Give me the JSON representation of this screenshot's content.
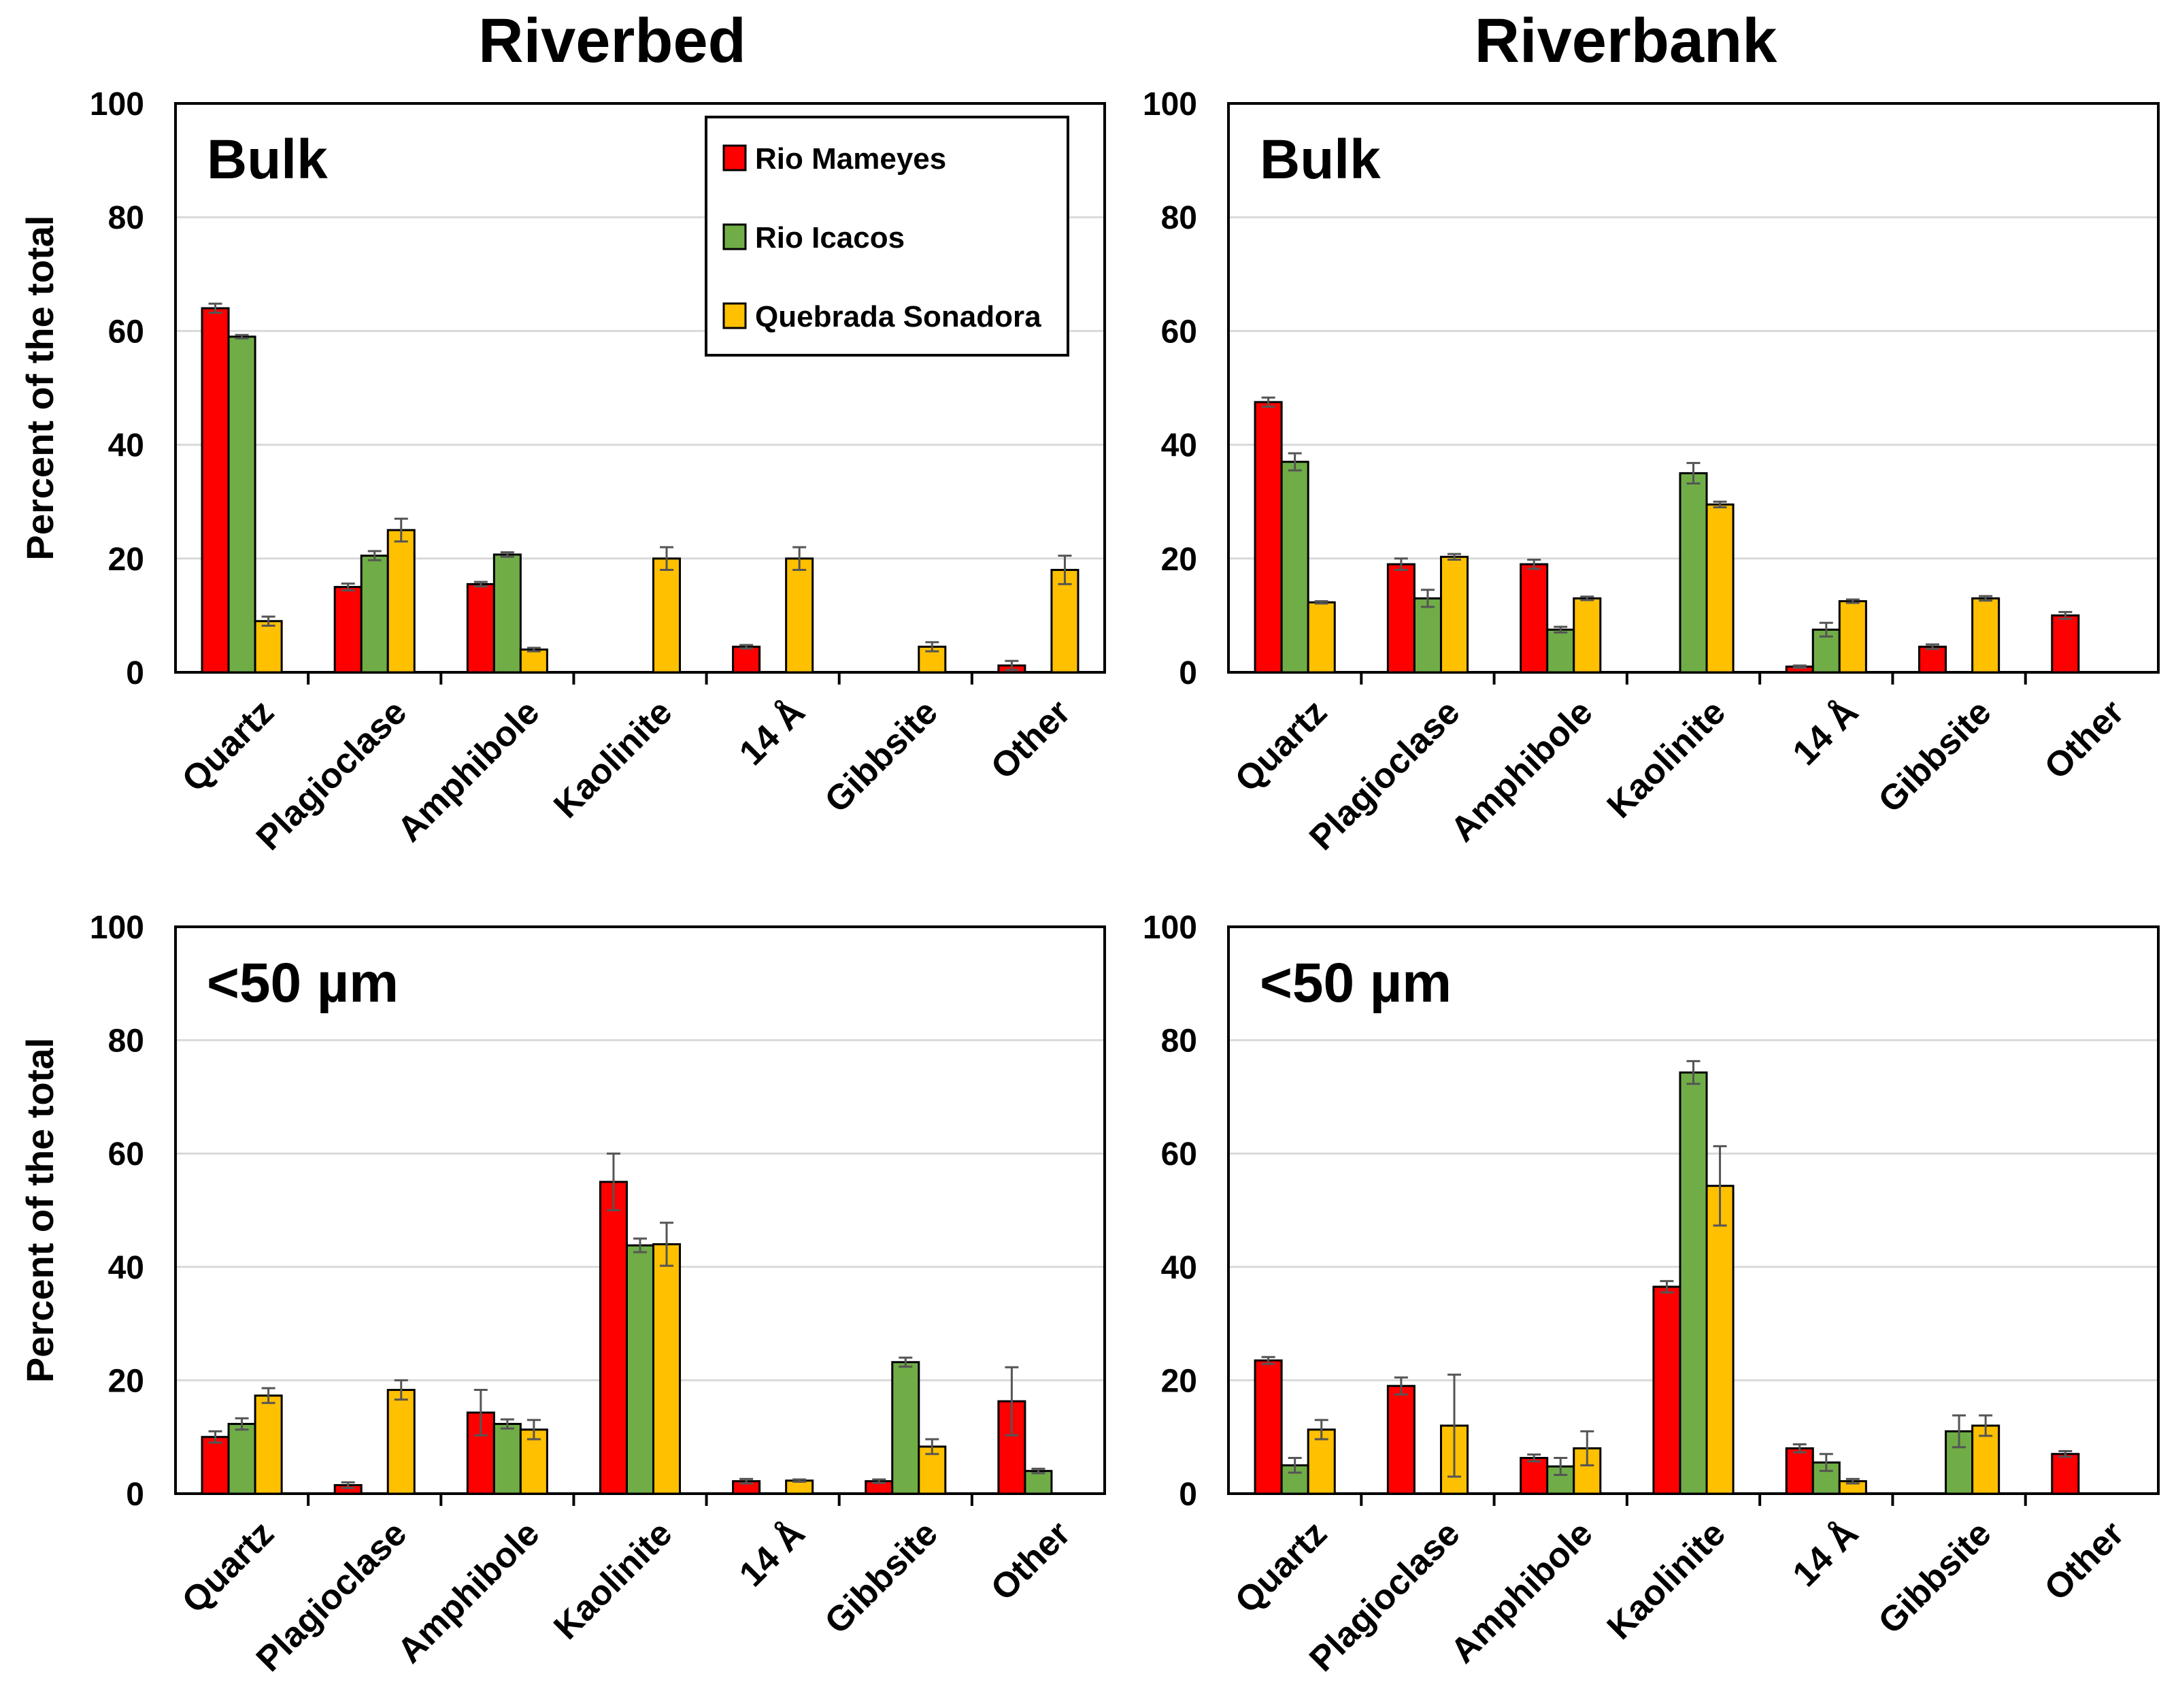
{
  "figure": {
    "column_titles": [
      "Riverbed",
      "Riverbank"
    ],
    "ylabel": "Percent of the total"
  },
  "legend": {
    "items": [
      {
        "name": "Rio Mameyes",
        "color": "#ff0000"
      },
      {
        "name": "Rio Icacos",
        "color": "#70ad47"
      },
      {
        "name": "Quebrada Sonadora",
        "color": "#ffc000"
      }
    ]
  },
  "chart_data": [
    {
      "type": "bar",
      "column": "Riverbed",
      "panel_label": "Bulk",
      "ylabel": "Percent of the total",
      "ylim": [
        0,
        100
      ],
      "yticks": [
        0,
        20,
        40,
        60,
        80,
        100
      ],
      "categories": [
        "Quartz",
        "Plagioclase",
        "Amphibole",
        "Kaolinite",
        "14 Å",
        "Gibbsite",
        "Other"
      ],
      "series": [
        {
          "name": "Rio Mameyes",
          "values": [
            64,
            15,
            15.5,
            null,
            4.5,
            null,
            1.2
          ],
          "errors": [
            0.8,
            0.6,
            0.4,
            null,
            0.3,
            null,
            0.8
          ]
        },
        {
          "name": "Rio Icacos",
          "values": [
            59,
            20.5,
            20.7,
            null,
            null,
            null,
            null
          ],
          "errors": [
            0.3,
            0.8,
            0.4,
            null,
            null,
            null,
            null
          ]
        },
        {
          "name": "Quebrada Sonadora",
          "values": [
            9,
            25,
            4,
            20,
            20,
            4.5,
            18
          ],
          "errors": [
            0.8,
            2,
            0.3,
            2,
            2,
            0.8,
            2.5
          ]
        }
      ]
    },
    {
      "type": "bar",
      "column": "Riverbank",
      "panel_label": "Bulk",
      "ylabel": "",
      "ylim": [
        0,
        100
      ],
      "yticks": [
        0,
        20,
        40,
        60,
        80,
        100
      ],
      "categories": [
        "Quartz",
        "Plagioclase",
        "Amphibole",
        "Kaolinite",
        "14 Å",
        "Gibbsite",
        "Other"
      ],
      "series": [
        {
          "name": "Rio Mameyes",
          "values": [
            47.5,
            19,
            19,
            null,
            1,
            4.5,
            10
          ],
          "errors": [
            0.8,
            1,
            0.8,
            null,
            0.2,
            0.4,
            0.6
          ]
        },
        {
          "name": "Rio Icacos",
          "values": [
            37,
            13,
            7.5,
            35,
            7.5,
            null,
            null
          ],
          "errors": [
            1.5,
            1.5,
            0.5,
            1.8,
            1.2,
            null,
            null
          ]
        },
        {
          "name": "Quebrada Sonadora",
          "values": [
            12.3,
            20.3,
            13,
            29.5,
            12.5,
            13,
            null
          ],
          "errors": [
            0.2,
            0.5,
            0.3,
            0.5,
            0.3,
            0.4,
            null
          ]
        }
      ]
    },
    {
      "type": "bar",
      "column": "Riverbed",
      "panel_label": "<50 µm",
      "ylabel": "Percent of the total",
      "ylim": [
        0,
        100
      ],
      "yticks": [
        0,
        20,
        40,
        60,
        80,
        100
      ],
      "categories": [
        "Quartz",
        "Plagioclase",
        "Amphibole",
        "Kaolinite",
        "14 Å",
        "Gibbsite",
        "Other"
      ],
      "series": [
        {
          "name": "Rio Mameyes",
          "values": [
            10,
            1.5,
            14.3,
            55,
            2.2,
            2.2,
            16.3
          ],
          "errors": [
            1,
            0.5,
            4,
            5,
            0.4,
            0.3,
            6
          ]
        },
        {
          "name": "Rio Icacos",
          "values": [
            12.3,
            null,
            12.3,
            43.8,
            null,
            23.2,
            4
          ],
          "errors": [
            1,
            null,
            0.8,
            1.2,
            null,
            0.8,
            0.4
          ]
        },
        {
          "name": "Quebrada Sonadora",
          "values": [
            17.3,
            18.3,
            11.3,
            44,
            2.3,
            8.3,
            null
          ],
          "errors": [
            1.3,
            1.7,
            1.7,
            3.8,
            0.2,
            1.3,
            null
          ]
        }
      ]
    },
    {
      "type": "bar",
      "column": "Riverbank",
      "panel_label": "<50 µm",
      "ylabel": "",
      "ylim": [
        0,
        100
      ],
      "yticks": [
        0,
        20,
        40,
        60,
        80,
        100
      ],
      "categories": [
        "Quartz",
        "Plagioclase",
        "Amphibole",
        "Kaolinite",
        "14 Å",
        "Gibbsite",
        "Other"
      ],
      "series": [
        {
          "name": "Rio Mameyes",
          "values": [
            23.5,
            19,
            6.3,
            36.5,
            8,
            null,
            7
          ],
          "errors": [
            0.6,
            1.5,
            0.6,
            1,
            0.7,
            null,
            0.5
          ]
        },
        {
          "name": "Rio Icacos",
          "values": [
            5,
            null,
            4.8,
            74.3,
            5.5,
            11,
            null
          ],
          "errors": [
            1.3,
            null,
            1.5,
            2,
            1.5,
            2.8,
            null
          ]
        },
        {
          "name": "Quebrada Sonadora",
          "values": [
            11.3,
            12,
            8,
            54.3,
            2.2,
            12,
            null
          ],
          "errors": [
            1.7,
            9,
            3,
            7,
            0.4,
            1.8,
            null
          ]
        }
      ]
    }
  ]
}
